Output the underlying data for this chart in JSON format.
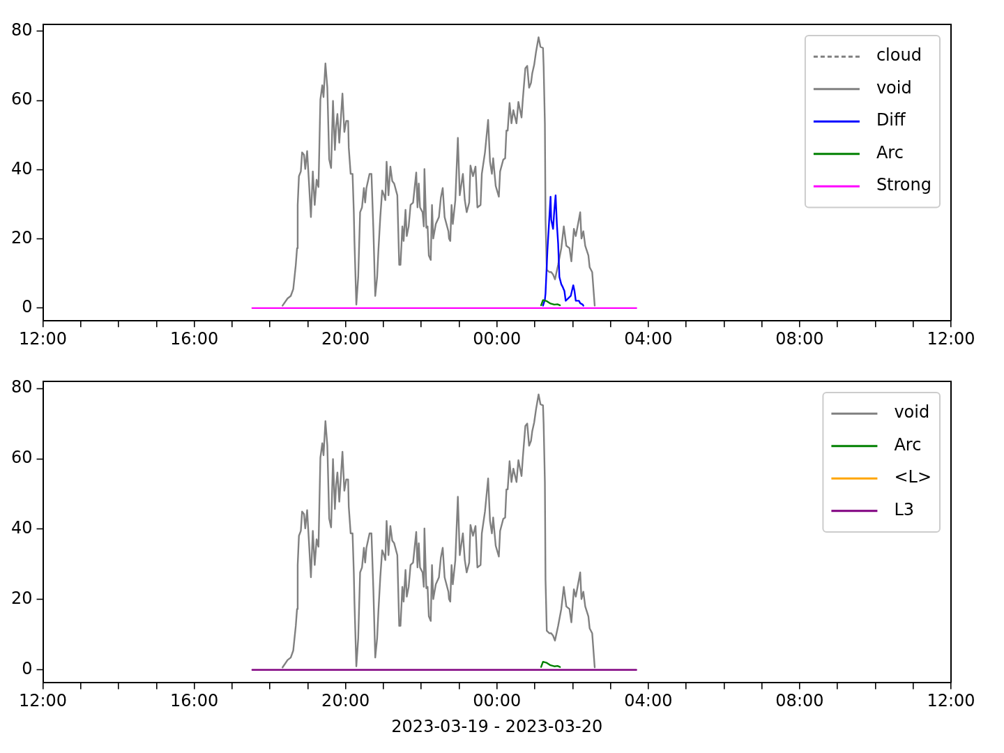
{
  "chart_data": [
    {
      "type": "line",
      "legend": "top right",
      "ylim": [
        -3.7,
        82
      ],
      "yticks": [
        0,
        20,
        40,
        60,
        80
      ],
      "xlim": [
        "2023-03-19T12:00",
        "2023-03-20T12:00"
      ],
      "xticks": [
        {
          "value": "2023-03-19T12:00",
          "label": "12:00"
        },
        {
          "value": "2023-03-19T13:00",
          "label": null
        },
        {
          "value": "2023-03-19T14:00",
          "label": null
        },
        {
          "value": "2023-03-19T15:00",
          "label": null
        },
        {
          "value": "2023-03-19T16:00",
          "label": "16:00"
        },
        {
          "value": "2023-03-19T17:00",
          "label": null
        },
        {
          "value": "2023-03-19T18:00",
          "label": null
        },
        {
          "value": "2023-03-19T19:00",
          "label": null
        },
        {
          "value": "2023-03-19T20:00",
          "label": "20:00"
        },
        {
          "value": "2023-03-19T21:00",
          "label": null
        },
        {
          "value": "2023-03-19T22:00",
          "label": null
        },
        {
          "value": "2023-03-19T23:00",
          "label": null
        },
        {
          "value": "2023-03-20T00:00",
          "label": "00:00"
        },
        {
          "value": "2023-03-20T01:00",
          "label": null
        },
        {
          "value": "2023-03-20T02:00",
          "label": null
        },
        {
          "value": "2023-03-20T03:00",
          "label": null
        },
        {
          "value": "2023-03-20T04:00",
          "label": "04:00"
        },
        {
          "value": "2023-03-20T05:00",
          "label": null
        },
        {
          "value": "2023-03-20T06:00",
          "label": null
        },
        {
          "value": "2023-03-20T07:00",
          "label": null
        },
        {
          "value": "2023-03-20T08:00",
          "label": "08:00"
        },
        {
          "value": "2023-03-20T09:00",
          "label": null
        },
        {
          "value": "2023-03-20T10:00",
          "label": null
        },
        {
          "value": "2023-03-20T11:00",
          "label": null
        },
        {
          "value": "2023-03-20T12:00",
          "label": "12:00"
        }
      ],
      "series": [
        {
          "name": "cloud",
          "color": "#808080",
          "line_style": "dashed"
        },
        {
          "name": "void",
          "color": "#808080",
          "x": [
            "2023-03-19T18:20",
            "2023-03-19T18:28",
            "2023-03-19T18:33",
            "2023-03-19T18:37",
            "2023-03-19T18:41",
            "2023-03-19T18:43",
            "2023-03-19T18:44",
            "2023-03-19T18:45",
            "2023-03-19T18:46",
            "2023-03-19T18:49",
            "2023-03-19T18:51",
            "2023-03-19T18:54",
            "2023-03-19T18:56",
            "2023-03-19T18:59",
            "2023-03-19T19:02",
            "2023-03-19T19:05",
            "2023-03-19T19:08",
            "2023-03-19T19:11",
            "2023-03-19T19:14",
            "2023-03-19T19:17",
            "2023-03-19T19:20",
            "2023-03-19T19:23",
            "2023-03-19T19:25",
            "2023-03-19T19:28",
            "2023-03-19T19:31",
            "2023-03-19T19:34",
            "2023-03-19T19:37",
            "2023-03-19T19:40",
            "2023-03-19T19:43",
            "2023-03-19T19:45",
            "2023-03-19T19:47",
            "2023-03-19T19:50",
            "2023-03-19T19:55",
            "2023-03-19T19:58",
            "2023-03-19T20:01",
            "2023-03-19T20:04",
            "2023-03-19T20:05",
            "2023-03-19T20:08",
            "2023-03-19T20:11",
            "2023-03-19T20:13",
            "2023-03-19T20:14",
            "2023-03-19T20:17",
            "2023-03-19T20:20",
            "2023-03-19T20:23",
            "2023-03-19T20:26",
            "2023-03-19T20:29",
            "2023-03-19T20:31",
            "2023-03-19T20:33",
            "2023-03-19T20:38",
            "2023-03-19T20:41",
            "2023-03-19T20:44",
            "2023-03-19T20:47",
            "2023-03-19T20:50",
            "2023-03-19T20:52",
            "2023-03-19T20:55",
            "2023-03-19T20:58",
            "2023-03-19T21:01",
            "2023-03-19T21:03",
            "2023-03-19T21:05",
            "2023-03-19T21:08",
            "2023-03-19T21:11",
            "2023-03-19T21:14",
            "2023-03-19T21:17",
            "2023-03-19T21:22",
            "2023-03-19T21:25",
            "2023-03-19T21:27",
            "2023-03-19T21:30",
            "2023-03-19T21:32",
            "2023-03-19T21:35",
            "2023-03-19T21:37",
            "2023-03-19T21:40",
            "2023-03-19T21:43",
            "2023-03-19T21:47",
            "2023-03-19T21:52",
            "2023-03-19T21:54",
            "2023-03-19T21:56",
            "2023-03-19T21:58",
            "2023-03-19T22:02",
            "2023-03-19T22:04",
            "2023-03-19T22:05",
            "2023-03-19T22:08",
            "2023-03-19T22:10",
            "2023-03-19T22:12",
            "2023-03-19T22:15",
            "2023-03-19T22:17",
            "2023-03-19T22:19",
            "2023-03-19T22:23",
            "2023-03-19T22:28",
            "2023-03-19T22:31",
            "2023-03-19T22:34",
            "2023-03-19T22:37",
            "2023-03-19T22:43",
            "2023-03-19T22:44",
            "2023-03-19T22:46",
            "2023-03-19T22:48",
            "2023-03-19T22:50",
            "2023-03-19T22:54",
            "2023-03-19T22:58",
            "2023-03-19T23:01",
            "2023-03-19T23:06",
            "2023-03-19T23:09",
            "2023-03-19T23:12",
            "2023-03-19T23:16",
            "2023-03-19T23:18",
            "2023-03-19T23:22",
            "2023-03-19T23:26",
            "2023-03-19T23:29",
            "2023-03-19T23:34",
            "2023-03-19T23:36",
            "2023-03-19T23:41",
            "2023-03-19T23:46",
            "2023-03-19T23:49",
            "2023-03-19T23:52",
            "2023-03-19T23:54",
            "2023-03-19T23:58",
            "2023-03-20T00:03",
            "2023-03-20T00:05",
            "2023-03-20T00:10",
            "2023-03-20T00:13",
            "2023-03-20T00:15",
            "2023-03-20T00:17",
            "2023-03-20T00:20",
            "2023-03-20T00:23",
            "2023-03-20T00:26",
            "2023-03-20T00:31",
            "2023-03-20T00:34",
            "2023-03-20T00:39",
            "2023-03-20T00:41",
            "2023-03-20T00:45",
            "2023-03-20T00:48",
            "2023-03-20T00:51",
            "2023-03-20T00:54",
            "2023-03-20T00:56",
            "2023-03-20T00:59",
            "2023-03-20T01:02",
            "2023-03-20T01:06",
            "2023-03-20T01:09",
            "2023-03-20T01:13",
            "2023-03-20T01:14",
            "2023-03-20T01:16",
            "2023-03-20T01:17",
            "2023-03-20T01:19",
            "2023-03-20T01:23",
            "2023-03-20T01:26",
            "2023-03-20T01:29",
            "2023-03-20T01:32",
            "2023-03-20T01:37",
            "2023-03-20T01:42",
            "2023-03-20T01:46",
            "2023-03-20T01:50",
            "2023-03-20T01:55",
            "2023-03-20T01:58",
            "2023-03-20T02:02",
            "2023-03-20T02:05",
            "2023-03-20T02:12",
            "2023-03-20T02:14",
            "2023-03-20T02:17",
            "2023-03-20T02:20",
            "2023-03-20T02:25",
            "2023-03-20T02:27",
            "2023-03-20T02:31",
            "2023-03-20T02:35"
          ],
          "values": [
            0.7,
            2.8,
            3.5,
            5.5,
            12.5,
            17.3,
            29.8,
            34,
            38.1,
            39.5,
            45,
            44.3,
            40.2,
            45.4,
            36,
            26.3,
            39.5,
            29.8,
            37.1,
            35,
            60.3,
            64.4,
            61,
            70.7,
            63.8,
            43,
            40.5,
            59.9,
            45.7,
            52.7,
            56.1,
            47.8,
            62,
            50.9,
            54.1,
            54.1,
            46.4,
            38.8,
            38.8,
            27.7,
            19.4,
            1,
            9,
            27.7,
            29.1,
            34.7,
            30.5,
            34.7,
            38.8,
            38.8,
            22.9,
            3.5,
            9,
            16.6,
            26.3,
            34,
            32.6,
            31.2,
            42.3,
            32.6,
            40.9,
            36.7,
            36,
            32.6,
            12.5,
            12.5,
            23.6,
            19.4,
            28.4,
            20.8,
            23.6,
            29.8,
            30.5,
            39.2,
            29.1,
            36,
            29.1,
            27.7,
            23.6,
            40.2,
            23.2,
            23.6,
            15.2,
            13.9,
            29.8,
            20.1,
            24.3,
            26.3,
            31.9,
            34.7,
            26.3,
            22.2,
            20.1,
            19.4,
            29.8,
            24.3,
            31.2,
            49.2,
            32.6,
            38.8,
            31.2,
            27.7,
            30.5,
            41.2,
            38.1,
            40.9,
            29.1,
            29.8,
            38.8,
            45,
            54.4,
            42.3,
            38.8,
            43.3,
            35.3,
            32.2,
            39.5,
            42.9,
            43.3,
            51.3,
            51.3,
            59.3,
            53.4,
            57.2,
            53.4,
            59.6,
            55.1,
            60.3,
            69.3,
            70,
            63.7,
            65.1,
            67.9,
            70.3,
            74.1,
            78.3,
            75.5,
            75.2,
            70,
            53.4,
            25.6,
            11.1,
            10.4,
            10.4,
            9.7,
            8.3,
            12.5,
            17.3,
            23.6,
            18,
            17.3,
            13.5,
            22.9,
            20.8,
            27.7,
            20.1,
            22.2,
            18,
            15.2,
            11.8,
            10.4,
            0.7
          ]
        },
        {
          "name": "Diff",
          "color": "#0000ff",
          "x": [
            "2023-03-20T01:13",
            "2023-03-20T01:16",
            "2023-03-20T01:17",
            "2023-03-20T01:20",
            "2023-03-20T01:25",
            "2023-03-20T01:26",
            "2023-03-20T01:29",
            "2023-03-20T01:31",
            "2023-03-20T01:33",
            "2023-03-20T01:35",
            "2023-03-20T01:37",
            "2023-03-20T01:39",
            "2023-03-20T01:42",
            "2023-03-20T01:44",
            "2023-03-20T01:47",
            "2023-03-20T01:49",
            "2023-03-20T01:53",
            "2023-03-20T01:57",
            "2023-03-20T02:01",
            "2023-03-20T02:03",
            "2023-03-20T02:05",
            "2023-03-20T02:10",
            "2023-03-20T02:12",
            "2023-03-20T02:16",
            "2023-03-20T02:17"
          ],
          "values": [
            0.7,
            2.4,
            4.2,
            16.6,
            32.2,
            25.6,
            22.9,
            28.4,
            32.6,
            24.3,
            18.7,
            9,
            6.9,
            6.2,
            4.9,
            2.1,
            2.8,
            3.5,
            6.6,
            4.9,
            2.1,
            2.1,
            1.4,
            1,
            0.7
          ]
        },
        {
          "name": "Arc",
          "color": "#008000",
          "x": [
            "2023-03-20T01:10",
            "2023-03-20T01:13",
            "2023-03-20T01:19",
            "2023-03-20T01:25",
            "2023-03-20T01:31",
            "2023-03-20T01:36",
            "2023-03-20T01:40"
          ],
          "values": [
            0.8,
            2.3,
            2,
            1.3,
            1,
            1.1,
            0.8
          ]
        },
        {
          "name": "Strong",
          "color": "#ff00ff",
          "x": [
            "2023-03-19T17:32",
            "2023-03-20T03:41"
          ],
          "values": [
            0,
            0
          ]
        }
      ]
    },
    {
      "type": "line",
      "legend": "top right",
      "ylim": [
        -3.7,
        82
      ],
      "yticks": [
        0,
        20,
        40,
        60,
        80
      ],
      "xlim": [
        "2023-03-19T12:00",
        "2023-03-20T12:00"
      ],
      "xlabel": "2023-03-19 - 2023-03-20",
      "xticks": [
        {
          "value": "2023-03-19T12:00",
          "label": "12:00"
        },
        {
          "value": "2023-03-19T13:00",
          "label": null
        },
        {
          "value": "2023-03-19T14:00",
          "label": null
        },
        {
          "value": "2023-03-19T15:00",
          "label": null
        },
        {
          "value": "2023-03-19T16:00",
          "label": "16:00"
        },
        {
          "value": "2023-03-19T17:00",
          "label": null
        },
        {
          "value": "2023-03-19T18:00",
          "label": null
        },
        {
          "value": "2023-03-19T19:00",
          "label": null
        },
        {
          "value": "2023-03-19T20:00",
          "label": "20:00"
        },
        {
          "value": "2023-03-19T21:00",
          "label": null
        },
        {
          "value": "2023-03-19T22:00",
          "label": null
        },
        {
          "value": "2023-03-19T23:00",
          "label": null
        },
        {
          "value": "2023-03-20T00:00",
          "label": "00:00"
        },
        {
          "value": "2023-03-20T01:00",
          "label": null
        },
        {
          "value": "2023-03-20T02:00",
          "label": null
        },
        {
          "value": "2023-03-20T03:00",
          "label": null
        },
        {
          "value": "2023-03-20T04:00",
          "label": "04:00"
        },
        {
          "value": "2023-03-20T05:00",
          "label": null
        },
        {
          "value": "2023-03-20T06:00",
          "label": null
        },
        {
          "value": "2023-03-20T07:00",
          "label": null
        },
        {
          "value": "2023-03-20T08:00",
          "label": "08:00"
        },
        {
          "value": "2023-03-20T09:00",
          "label": null
        },
        {
          "value": "2023-03-20T10:00",
          "label": null
        },
        {
          "value": "2023-03-20T11:00",
          "label": null
        },
        {
          "value": "2023-03-20T12:00",
          "label": "12:00"
        }
      ],
      "series": [
        {
          "name": "void",
          "color": "#808080",
          "x": [
            "2023-03-19T18:20",
            "2023-03-19T18:28",
            "2023-03-19T18:33",
            "2023-03-19T18:37",
            "2023-03-19T18:41",
            "2023-03-19T18:43",
            "2023-03-19T18:44",
            "2023-03-19T18:45",
            "2023-03-19T18:46",
            "2023-03-19T18:49",
            "2023-03-19T18:51",
            "2023-03-19T18:54",
            "2023-03-19T18:56",
            "2023-03-19T18:59",
            "2023-03-19T19:02",
            "2023-03-19T19:05",
            "2023-03-19T19:08",
            "2023-03-19T19:11",
            "2023-03-19T19:14",
            "2023-03-19T19:17",
            "2023-03-19T19:20",
            "2023-03-19T19:23",
            "2023-03-19T19:25",
            "2023-03-19T19:28",
            "2023-03-19T19:31",
            "2023-03-19T19:34",
            "2023-03-19T19:37",
            "2023-03-19T19:40",
            "2023-03-19T19:43",
            "2023-03-19T19:45",
            "2023-03-19T19:47",
            "2023-03-19T19:50",
            "2023-03-19T19:55",
            "2023-03-19T19:58",
            "2023-03-19T20:01",
            "2023-03-19T20:04",
            "2023-03-19T20:05",
            "2023-03-19T20:08",
            "2023-03-19T20:11",
            "2023-03-19T20:13",
            "2023-03-19T20:14",
            "2023-03-19T20:17",
            "2023-03-19T20:20",
            "2023-03-19T20:23",
            "2023-03-19T20:26",
            "2023-03-19T20:29",
            "2023-03-19T20:31",
            "2023-03-19T20:33",
            "2023-03-19T20:38",
            "2023-03-19T20:41",
            "2023-03-19T20:44",
            "2023-03-19T20:47",
            "2023-03-19T20:50",
            "2023-03-19T20:52",
            "2023-03-19T20:55",
            "2023-03-19T20:58",
            "2023-03-19T21:01",
            "2023-03-19T21:03",
            "2023-03-19T21:05",
            "2023-03-19T21:08",
            "2023-03-19T21:11",
            "2023-03-19T21:14",
            "2023-03-19T21:17",
            "2023-03-19T21:22",
            "2023-03-19T21:25",
            "2023-03-19T21:27",
            "2023-03-19T21:30",
            "2023-03-19T21:32",
            "2023-03-19T21:35",
            "2023-03-19T21:37",
            "2023-03-19T21:40",
            "2023-03-19T21:43",
            "2023-03-19T21:47",
            "2023-03-19T21:52",
            "2023-03-19T21:54",
            "2023-03-19T21:56",
            "2023-03-19T21:58",
            "2023-03-19T22:02",
            "2023-03-19T22:04",
            "2023-03-19T22:05",
            "2023-03-19T22:08",
            "2023-03-19T22:10",
            "2023-03-19T22:12",
            "2023-03-19T22:15",
            "2023-03-19T22:17",
            "2023-03-19T22:19",
            "2023-03-19T22:23",
            "2023-03-19T22:28",
            "2023-03-19T22:31",
            "2023-03-19T22:34",
            "2023-03-19T22:37",
            "2023-03-19T22:43",
            "2023-03-19T22:44",
            "2023-03-19T22:46",
            "2023-03-19T22:48",
            "2023-03-19T22:50",
            "2023-03-19T22:54",
            "2023-03-19T22:58",
            "2023-03-19T23:01",
            "2023-03-19T23:06",
            "2023-03-19T23:09",
            "2023-03-19T23:12",
            "2023-03-19T23:16",
            "2023-03-19T23:18",
            "2023-03-19T23:22",
            "2023-03-19T23:26",
            "2023-03-19T23:29",
            "2023-03-19T23:34",
            "2023-03-19T23:36",
            "2023-03-19T23:41",
            "2023-03-19T23:46",
            "2023-03-19T23:49",
            "2023-03-19T23:52",
            "2023-03-19T23:54",
            "2023-03-19T23:58",
            "2023-03-20T00:03",
            "2023-03-20T00:05",
            "2023-03-20T00:10",
            "2023-03-20T00:13",
            "2023-03-20T00:15",
            "2023-03-20T00:17",
            "2023-03-20T00:20",
            "2023-03-20T00:23",
            "2023-03-20T00:26",
            "2023-03-20T00:31",
            "2023-03-20T00:34",
            "2023-03-20T00:39",
            "2023-03-20T00:41",
            "2023-03-20T00:45",
            "2023-03-20T00:48",
            "2023-03-20T00:51",
            "2023-03-20T00:54",
            "2023-03-20T00:56",
            "2023-03-20T00:59",
            "2023-03-20T01:02",
            "2023-03-20T01:06",
            "2023-03-20T01:09",
            "2023-03-20T01:13",
            "2023-03-20T01:14",
            "2023-03-20T01:16",
            "2023-03-20T01:17",
            "2023-03-20T01:19",
            "2023-03-20T01:23",
            "2023-03-20T01:26",
            "2023-03-20T01:29",
            "2023-03-20T01:32",
            "2023-03-20T01:37",
            "2023-03-20T01:42",
            "2023-03-20T01:46",
            "2023-03-20T01:50",
            "2023-03-20T01:55",
            "2023-03-20T01:58",
            "2023-03-20T02:02",
            "2023-03-20T02:05",
            "2023-03-20T02:12",
            "2023-03-20T02:14",
            "2023-03-20T02:17",
            "2023-03-20T02:20",
            "2023-03-20T02:25",
            "2023-03-20T02:27",
            "2023-03-20T02:31",
            "2023-03-20T02:35"
          ],
          "values": [
            0.7,
            2.8,
            3.5,
            5.5,
            12.5,
            17.3,
            29.8,
            34,
            38.1,
            39.5,
            45,
            44.3,
            40.2,
            45.4,
            36,
            26.3,
            39.5,
            29.8,
            37.1,
            35,
            60.3,
            64.4,
            61,
            70.7,
            63.8,
            43,
            40.5,
            59.9,
            45.7,
            52.7,
            56.1,
            47.8,
            62,
            50.9,
            54.1,
            54.1,
            46.4,
            38.8,
            38.8,
            27.7,
            19.4,
            1,
            9,
            27.7,
            29.1,
            34.7,
            30.5,
            34.7,
            38.8,
            38.8,
            22.9,
            3.5,
            9,
            16.6,
            26.3,
            34,
            32.6,
            31.2,
            42.3,
            32.6,
            40.9,
            36.7,
            36,
            32.6,
            12.5,
            12.5,
            23.6,
            19.4,
            28.4,
            20.8,
            23.6,
            29.8,
            30.5,
            39.2,
            29.1,
            36,
            29.1,
            27.7,
            23.6,
            40.2,
            23.2,
            23.6,
            15.2,
            13.9,
            29.8,
            20.1,
            24.3,
            26.3,
            31.9,
            34.7,
            26.3,
            22.2,
            20.1,
            19.4,
            29.8,
            24.3,
            31.2,
            49.2,
            32.6,
            38.8,
            31.2,
            27.7,
            30.5,
            41.2,
            38.1,
            40.9,
            29.1,
            29.8,
            38.8,
            45,
            54.4,
            42.3,
            38.8,
            43.3,
            35.3,
            32.2,
            39.5,
            42.9,
            43.3,
            51.3,
            51.3,
            59.3,
            53.4,
            57.2,
            53.4,
            59.6,
            55.1,
            60.3,
            69.3,
            70,
            63.7,
            65.1,
            67.9,
            70.3,
            74.1,
            78.3,
            75.5,
            75.2,
            70,
            53.4,
            25.6,
            11.1,
            10.4,
            10.4,
            9.7,
            8.3,
            12.5,
            17.3,
            23.6,
            18,
            17.3,
            13.5,
            22.9,
            20.8,
            27.7,
            20.1,
            22.2,
            18,
            15.2,
            11.8,
            10.4,
            0.7
          ]
        },
        {
          "name": "Arc",
          "color": "#008000",
          "x": [
            "2023-03-20T01:10",
            "2023-03-20T01:13",
            "2023-03-20T01:19",
            "2023-03-20T01:25",
            "2023-03-20T01:31",
            "2023-03-20T01:36",
            "2023-03-20T01:40"
          ],
          "values": [
            0.8,
            2.3,
            2,
            1.3,
            1,
            1.1,
            0.8
          ]
        },
        {
          "name": "<L>",
          "color": "#ffa500"
        },
        {
          "name": "L3",
          "color": "#800080",
          "x": [
            "2023-03-19T17:32",
            "2023-03-20T03:41"
          ],
          "values": [
            0,
            0
          ]
        }
      ]
    }
  ]
}
